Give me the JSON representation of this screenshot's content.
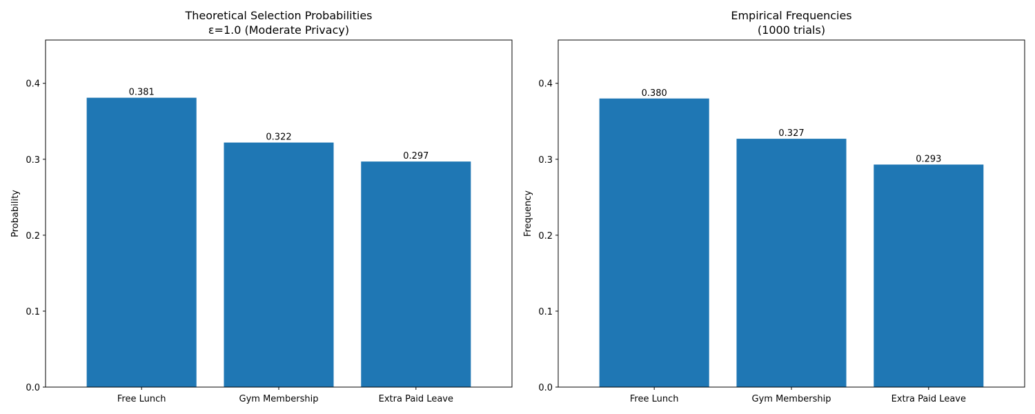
{
  "chart_data": [
    {
      "type": "bar",
      "title_lines": [
        "Theoretical Selection Probabilities",
        "ε=1.0 (Moderate Privacy)"
      ],
      "xlabel": "",
      "ylabel": "Probability",
      "categories": [
        "Free Lunch",
        "Gym Membership",
        "Extra Paid Leave"
      ],
      "values": [
        0.381,
        0.322,
        0.297
      ],
      "value_labels": [
        "0.381",
        "0.322",
        "0.297"
      ],
      "ylim": [
        0,
        0.457
      ],
      "yticks": [
        0.0,
        0.1,
        0.2,
        0.3,
        0.4
      ],
      "ytick_labels": [
        "0.0",
        "0.1",
        "0.2",
        "0.3",
        "0.4"
      ],
      "grid": false,
      "bar_color": "#1f77b4"
    },
    {
      "type": "bar",
      "title_lines": [
        "Empirical Frequencies",
        "(1000 trials)"
      ],
      "xlabel": "",
      "ylabel": "Frequency",
      "categories": [
        "Free Lunch",
        "Gym Membership",
        "Extra Paid Leave"
      ],
      "values": [
        0.38,
        0.327,
        0.293
      ],
      "value_labels": [
        "0.380",
        "0.327",
        "0.293"
      ],
      "ylim": [
        0,
        0.457
      ],
      "yticks": [
        0.0,
        0.1,
        0.2,
        0.3,
        0.4
      ],
      "ytick_labels": [
        "0.0",
        "0.1",
        "0.2",
        "0.3",
        "0.4"
      ],
      "grid": false,
      "bar_color": "#1f77b4"
    }
  ]
}
